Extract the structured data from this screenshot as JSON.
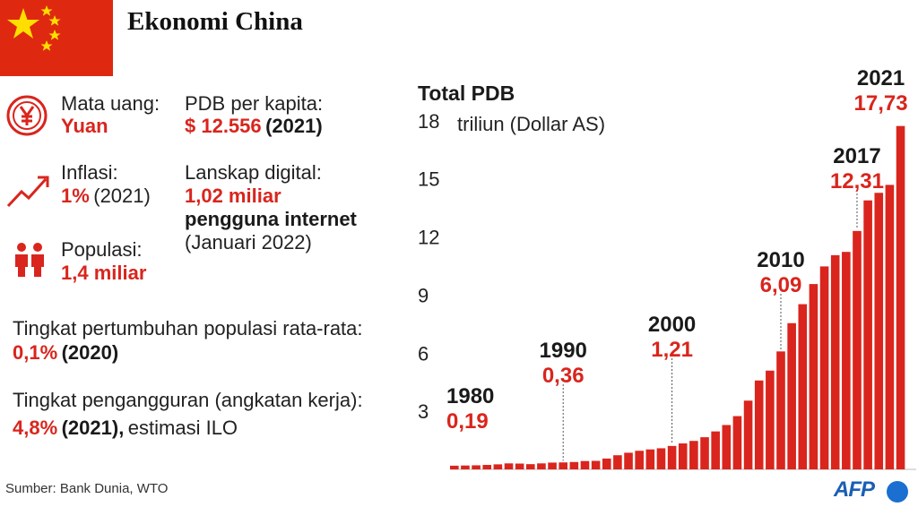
{
  "title": "Ekonomi China",
  "colors": {
    "accent": "#d9251d",
    "flag_red": "#de2910",
    "flag_star": "#ffde00",
    "afp_blue": "#1a6fd0"
  },
  "facts": {
    "currency": {
      "label": "Mata uang:",
      "value": "Yuan",
      "icon": "yen-icon"
    },
    "inflation": {
      "label": "Inflasi:",
      "value": "1%",
      "year": "(2021)",
      "icon": "trend-up-icon"
    },
    "population": {
      "label": "Populasi:",
      "value": "1,4 miliar",
      "icon": "people-icon"
    },
    "gdp_per_capita": {
      "label": "PDB per kapita:",
      "value": "$ 12.556",
      "year": "(2021)"
    },
    "digital": {
      "label": "Lanskap digital:",
      "value": "1,02 miliar",
      "value2": "pengguna internet",
      "note": "(Januari 2022)"
    },
    "pop_growth": {
      "label": "Tingkat pertumbuhan populasi rata-rata:",
      "value": "0,1%",
      "year": "(2020)"
    },
    "unemployment": {
      "label": "Tingkat pengangguran (angkatan kerja):",
      "value": "4,8%",
      "year": "(2021),",
      "note": "estimasi ILO"
    }
  },
  "source": "Sumber: Bank Dunia, WTO",
  "logo": "AFP",
  "chart_data": {
    "type": "bar",
    "title": "Total PDB",
    "unit_label": "triliun (Dollar AS)",
    "ylim": [
      0,
      18
    ],
    "yticks": [
      "18",
      "15",
      "12",
      "9",
      "6",
      "3"
    ],
    "grid": false,
    "categories": [
      "1980",
      "1981",
      "1982",
      "1983",
      "1984",
      "1985",
      "1986",
      "1987",
      "1988",
      "1989",
      "1990",
      "1991",
      "1992",
      "1993",
      "1994",
      "1995",
      "1996",
      "1997",
      "1998",
      "1999",
      "2000",
      "2001",
      "2002",
      "2003",
      "2004",
      "2005",
      "2006",
      "2007",
      "2008",
      "2009",
      "2010",
      "2011",
      "2012",
      "2013",
      "2014",
      "2015",
      "2016",
      "2017",
      "2018",
      "2019",
      "2020",
      "2021"
    ],
    "values": [
      0.19,
      0.2,
      0.21,
      0.23,
      0.26,
      0.31,
      0.3,
      0.27,
      0.31,
      0.35,
      0.36,
      0.38,
      0.43,
      0.44,
      0.56,
      0.73,
      0.86,
      0.96,
      1.03,
      1.09,
      1.21,
      1.34,
      1.47,
      1.66,
      1.96,
      2.29,
      2.75,
      3.55,
      4.59,
      5.1,
      6.09,
      7.55,
      8.53,
      9.57,
      10.48,
      11.06,
      11.23,
      12.31,
      13.89,
      14.28,
      14.69,
      17.73
    ],
    "annotations": [
      {
        "year": "1980",
        "value": "0,19"
      },
      {
        "year": "1990",
        "value": "0,36"
      },
      {
        "year": "2000",
        "value": "1,21"
      },
      {
        "year": "2010",
        "value": "6,09"
      },
      {
        "year": "2017",
        "value": "12,31"
      },
      {
        "year": "2021",
        "value": "17,73"
      }
    ]
  }
}
